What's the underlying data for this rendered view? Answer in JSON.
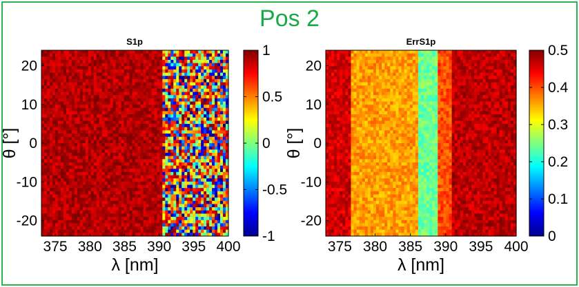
{
  "figure": {
    "title": "Pos 2",
    "title_color": "#19a94a",
    "frame_color": "#2bb34c"
  },
  "colormap": "jet",
  "chart_data": [
    {
      "type": "heatmap",
      "title": "S1p",
      "xlabel": "λ [nm]",
      "ylabel": "θ [°]",
      "xlim": [
        373,
        400
      ],
      "ylim": [
        -24,
        24
      ],
      "x_ticks": [
        "375",
        "380",
        "385",
        "390",
        "395",
        "400"
      ],
      "y_ticks": [
        "20",
        "10",
        "0",
        "-10",
        "-20"
      ],
      "clim": [
        -1,
        1
      ],
      "colorbar_ticks": [
        "1",
        "0.5",
        "0",
        "-0.5",
        "-1"
      ],
      "regions": [
        {
          "x": [
            373,
            390.5
          ],
          "value": 0.9,
          "description_value": "mostly ~0.9 (dark red), slightly lower 373-376"
        },
        {
          "x": [
            390.5,
            400
          ],
          "value": 0.2,
          "noise": "mixed -1 to 1 speckle"
        }
      ]
    },
    {
      "type": "heatmap",
      "title": "ErrS1p",
      "xlabel": "λ [nm]",
      "ylabel": "θ [°]",
      "xlim": [
        373,
        400
      ],
      "ylim": [
        -24,
        24
      ],
      "x_ticks": [
        "375",
        "380",
        "385",
        "390",
        "395",
        "400"
      ],
      "y_ticks": [
        "20",
        "10",
        "0",
        "-10",
        "-20"
      ],
      "clim": [
        0,
        0.5
      ],
      "colorbar_ticks": [
        "0.5",
        "0.4",
        "0.3",
        "0.2",
        "0.1",
        "0"
      ],
      "regions": [
        {
          "x": [
            373,
            376.5
          ],
          "value": 0.46
        },
        {
          "x": [
            376.5,
            386
          ],
          "value": 0.36
        },
        {
          "x": [
            386,
            389
          ],
          "value": 0.24
        },
        {
          "x": [
            389,
            391
          ],
          "value": 0.4
        },
        {
          "x": [
            391,
            400
          ],
          "value": 0.47
        }
      ]
    }
  ]
}
